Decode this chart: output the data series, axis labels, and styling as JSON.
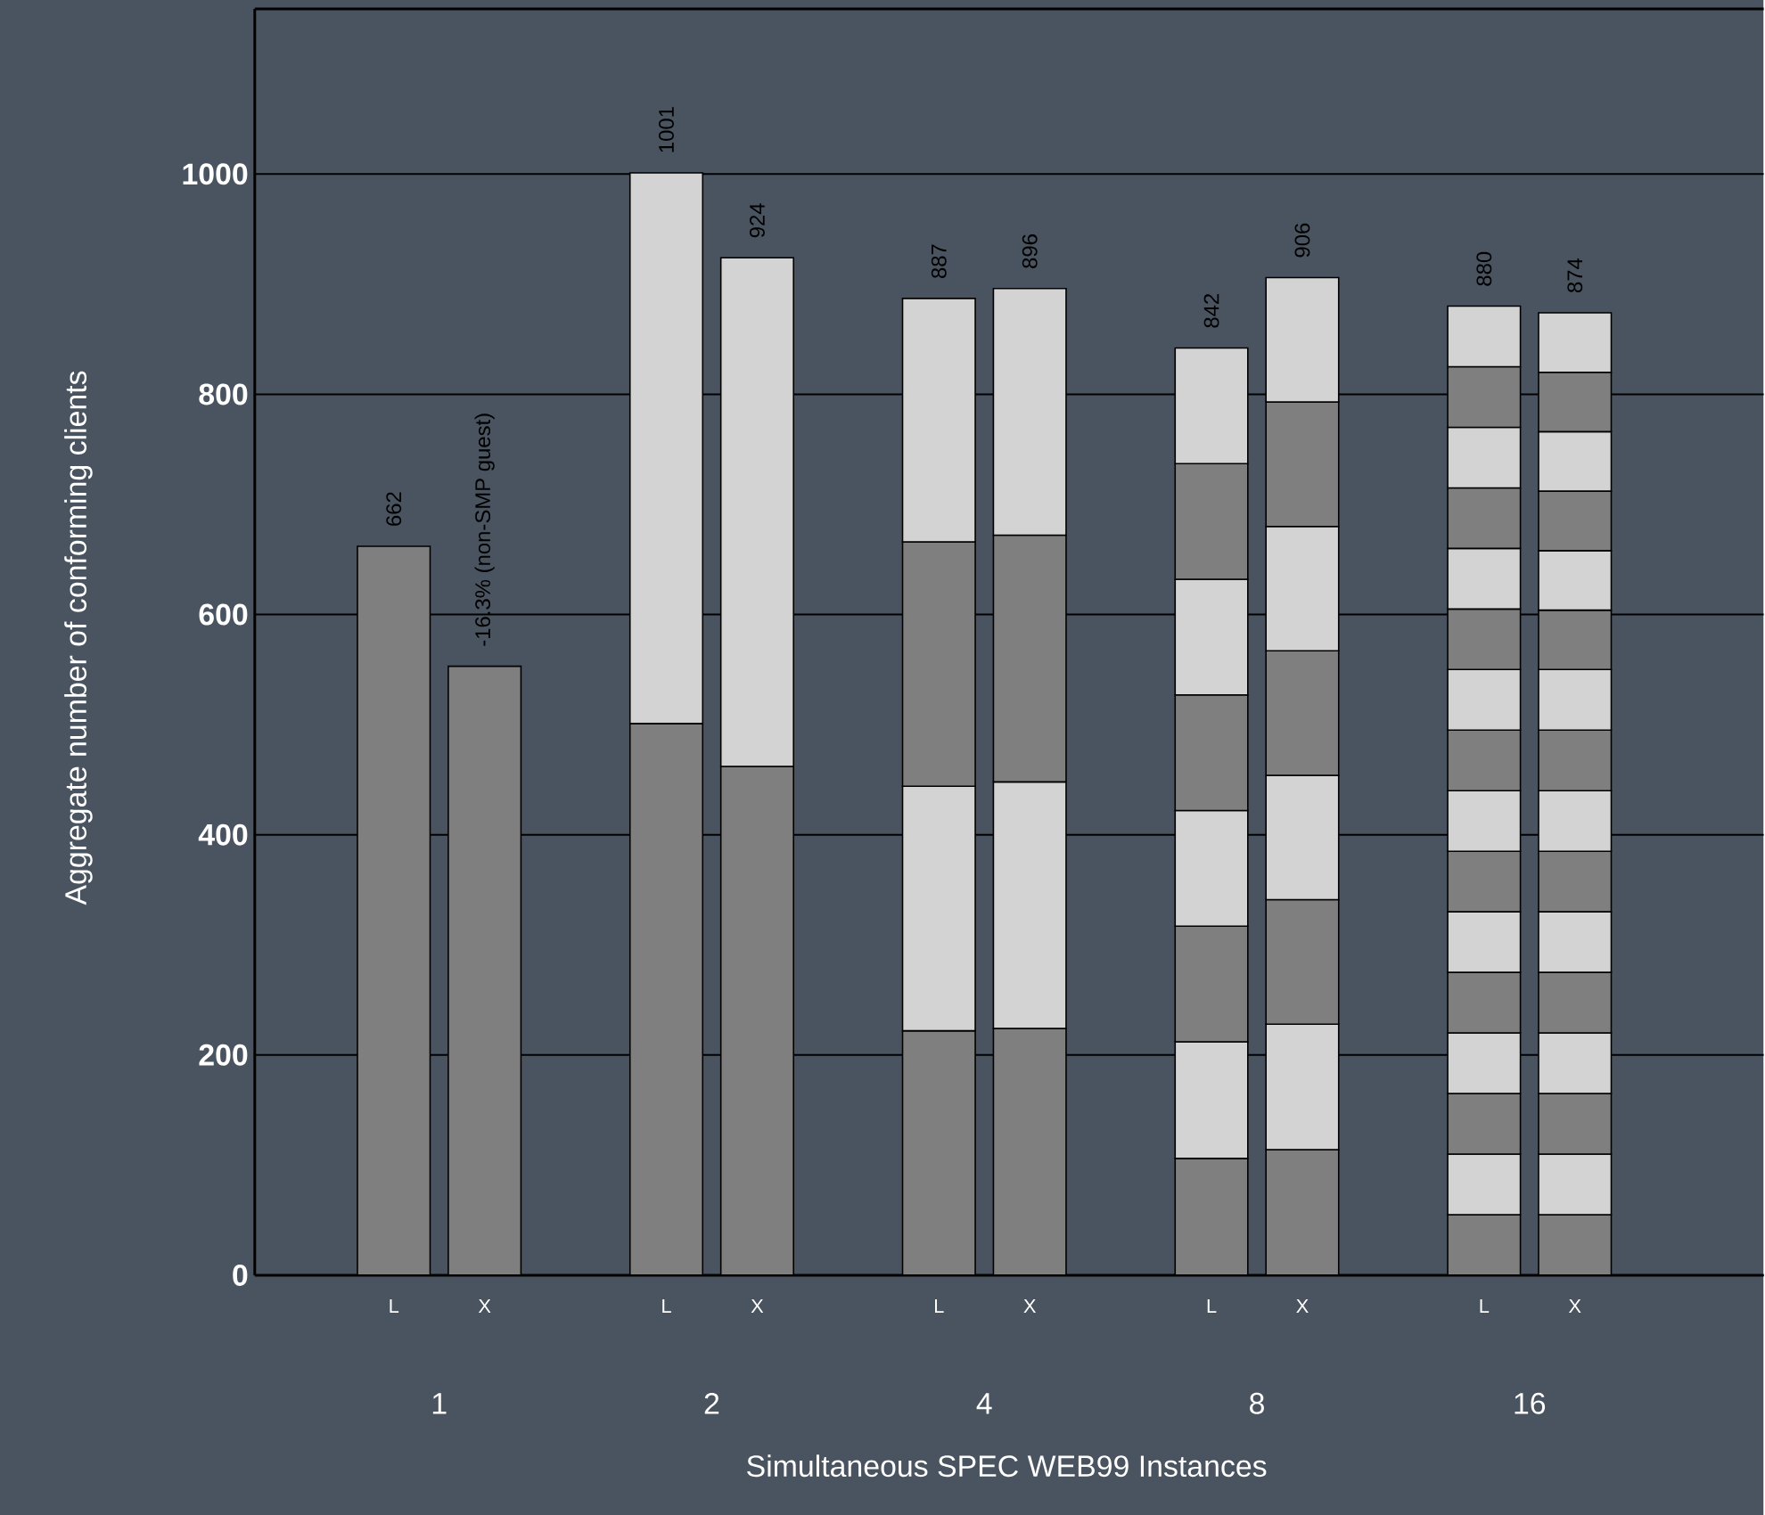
{
  "chart_data": {
    "type": "bar",
    "stacked": true,
    "xlabel": "Simultaneous SPEC WEB99 Instances",
    "ylabel": "Aggregate number of conforming clients",
    "categories": [
      "L",
      "X",
      "L",
      "X",
      "L",
      "X",
      "L",
      "X",
      "L",
      "X"
    ],
    "annotations": [
      "1",
      "2",
      "4",
      "8",
      "16",
      {
        "text": "-16.3% (non-SMP guest)",
        "y": 553
      }
    ],
    "ylim": [
      0,
      1150
    ],
    "yticks": [
      0,
      200,
      400,
      600,
      800,
      1000
    ],
    "grid": "y",
    "totals": [
      "662",
      null,
      "1001",
      "924",
      "887",
      "896",
      "842",
      "906",
      "880",
      "874"
    ],
    "series": [
      {
        "color": "#7f7f7f",
        "values": [
          662,
          553,
          501,
          462,
          222,
          224,
          106,
          114,
          55,
          55
        ]
      },
      {
        "color": "#d3d3d3",
        "values": [
          null,
          null,
          500,
          462,
          222,
          224,
          106,
          114,
          55,
          55
        ]
      },
      {
        "color": "#7f7f7f",
        "values": [
          null,
          null,
          null,
          null,
          222,
          224,
          105,
          113,
          55,
          55
        ]
      },
      {
        "color": "#d3d3d3",
        "values": [
          null,
          null,
          null,
          null,
          221,
          224,
          105,
          113,
          55,
          55
        ]
      },
      {
        "color": "#7f7f7f",
        "values": [
          null,
          null,
          null,
          null,
          null,
          null,
          105,
          113,
          55,
          55
        ]
      },
      {
        "color": "#d3d3d3",
        "values": [
          null,
          null,
          null,
          null,
          null,
          null,
          105,
          113,
          55,
          55
        ]
      },
      {
        "color": "#7f7f7f",
        "values": [
          null,
          null,
          null,
          null,
          null,
          null,
          105,
          113,
          55,
          55
        ]
      },
      {
        "color": "#d3d3d3",
        "values": [
          null,
          null,
          null,
          null,
          null,
          null,
          105,
          113,
          55,
          55
        ]
      },
      {
        "color": "#7f7f7f",
        "values": [
          null,
          null,
          null,
          null,
          null,
          null,
          null,
          null,
          55,
          55
        ]
      },
      {
        "color": "#d3d3d3",
        "values": [
          null,
          null,
          null,
          null,
          null,
          null,
          null,
          null,
          55,
          55
        ]
      },
      {
        "color": "#7f7f7f",
        "values": [
          null,
          null,
          null,
          null,
          null,
          null,
          null,
          null,
          55,
          54
        ]
      },
      {
        "color": "#d3d3d3",
        "values": [
          null,
          null,
          null,
          null,
          null,
          null,
          null,
          null,
          55,
          54
        ]
      },
      {
        "color": "#7f7f7f",
        "values": [
          null,
          null,
          null,
          null,
          null,
          null,
          null,
          null,
          55,
          54
        ]
      },
      {
        "color": "#d3d3d3",
        "values": [
          null,
          null,
          null,
          null,
          null,
          null,
          null,
          null,
          55,
          54
        ]
      },
      {
        "color": "#7f7f7f",
        "values": [
          null,
          null,
          null,
          null,
          null,
          null,
          null,
          null,
          55,
          54
        ]
      },
      {
        "color": "#d3d3d3",
        "values": [
          null,
          null,
          null,
          null,
          null,
          null,
          null,
          null,
          55,
          54
        ]
      }
    ]
  }
}
